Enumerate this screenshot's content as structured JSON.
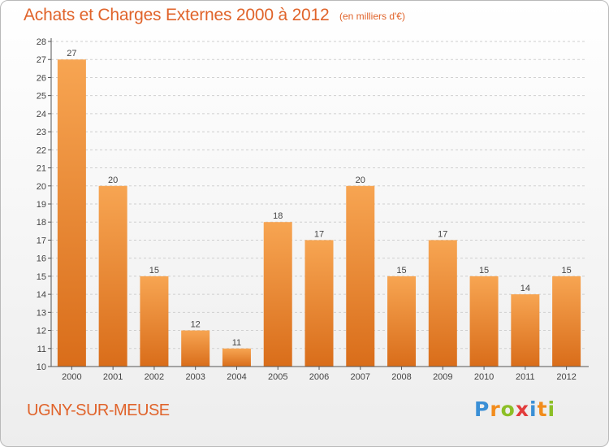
{
  "header": {
    "title": "Achats et Charges Externes 2000 à 2012",
    "unit": "(en milliers d'€)"
  },
  "footer": {
    "commune": "UGNY-SUR-MEUSE",
    "logo_text": "Proxiti"
  },
  "colors": {
    "accent": "#e0632a",
    "bar_top": "#f7a552",
    "bar_bottom": "#d96d1a",
    "grid": "#cfcfcf"
  },
  "chart_data": {
    "type": "bar",
    "title": "Achats et Charges Externes 2000 à 2012",
    "subtitle": "(en milliers d'€)",
    "xlabel": "",
    "ylabel": "",
    "categories": [
      "2000",
      "2001",
      "2002",
      "2003",
      "2004",
      "2005",
      "2006",
      "2007",
      "2008",
      "2009",
      "2010",
      "2011",
      "2012"
    ],
    "values": [
      27,
      20,
      15,
      12,
      11,
      18,
      17,
      20,
      15,
      17,
      15,
      14,
      15
    ],
    "data_labels": [
      "27",
      "20",
      "15",
      "12",
      "11",
      "18",
      "17",
      "20",
      "15",
      "17",
      "15",
      "14",
      "15"
    ],
    "ylim": [
      10,
      28
    ],
    "yticks": [
      10,
      11,
      12,
      13,
      14,
      15,
      16,
      17,
      18,
      19,
      20,
      21,
      22,
      23,
      24,
      25,
      26,
      27,
      28
    ],
    "grid": true
  }
}
